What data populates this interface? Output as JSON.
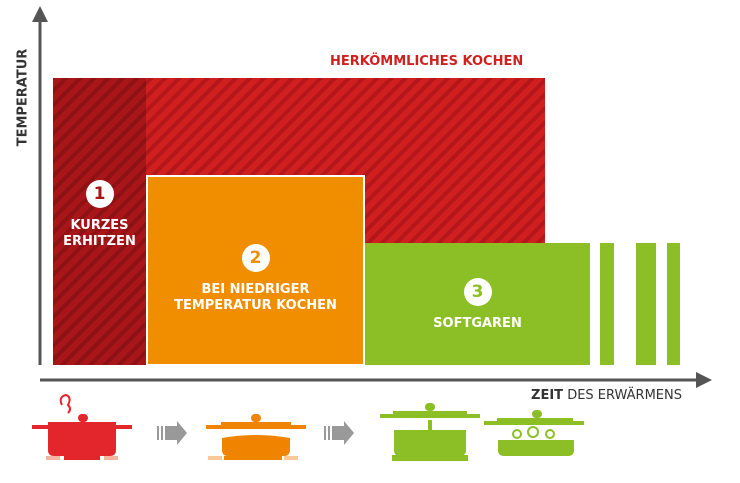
{
  "axes": {
    "y_label": "TEMPERATUR",
    "x_label_bold": "ZEIT",
    "x_label_rest": "DES ERWÄRMENS"
  },
  "conventional": {
    "label": "HERKÖMMLICHES KOCHEN",
    "color": "#d01f1f"
  },
  "stages": [
    {
      "number": "1",
      "label_lines": [
        "KURZES",
        "ERHITZEN"
      ],
      "color": "#a8161a"
    },
    {
      "number": "2",
      "label_lines": [
        "BEI NIEDRIGER",
        "TEMPERATUR KOCHEN"
      ],
      "color": "#f18e00"
    },
    {
      "number": "3",
      "label_lines": [
        "SOFTGAREN"
      ],
      "color": "#8cbf26"
    }
  ],
  "icons": [
    "boiling-pot-icon",
    "arrow-right-icon",
    "simmering-pot-icon",
    "arrow-right-icon",
    "residual-heat-pot-icon",
    "soft-cooking-pot-icon"
  ]
}
